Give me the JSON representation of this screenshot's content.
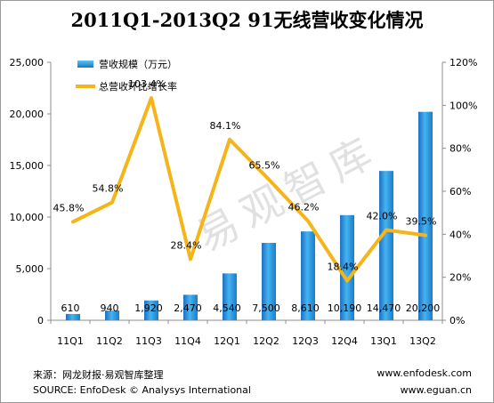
{
  "title": "2011Q1-2013Q2  91无线营收变化情况",
  "source_cn": "来源：网龙财报·易观智库整理",
  "source_en": "SOURCE: EnfoDesk © Analysys International",
  "url1": "www.enfodesk.com",
  "url2": "www.eguan.cn",
  "watermark": "易观智库",
  "chart_data": {
    "type": "bar",
    "categories": [
      "11Q1",
      "11Q2",
      "11Q3",
      "11Q4",
      "12Q1",
      "12Q2",
      "12Q3",
      "12Q4",
      "13Q1",
      "13Q2"
    ],
    "series": [
      {
        "name": "营收规模（万元）",
        "type": "bar",
        "axis": "left",
        "values": [
          610,
          940,
          1920,
          2470,
          4540,
          7500,
          8610,
          10190,
          14470,
          20200
        ],
        "labels": [
          "610",
          "940",
          "1,920",
          "2,470",
          "4,540",
          "7,500",
          "8,610",
          "10,190",
          "14,470",
          "20,200"
        ],
        "color": "#2f95dc"
      },
      {
        "name": "总营收环比增长率",
        "type": "line",
        "axis": "right",
        "values": [
          45.8,
          54.8,
          103.4,
          28.4,
          84.1,
          65.5,
          46.2,
          18.4,
          42.0,
          39.5
        ],
        "labels": [
          "45.8%",
          "54.8%",
          "103.4%",
          "28.4%",
          "84.1%",
          "65.5%",
          "46.2%",
          "18.4%",
          "42.0%",
          "39.5%"
        ],
        "color": "#f5b41a"
      }
    ],
    "y_left": {
      "min": 0,
      "max": 25000,
      "ticks": [
        "0",
        "5,000",
        "10,000",
        "15,000",
        "20,000",
        "25,000"
      ]
    },
    "y_right": {
      "min": 0,
      "max": 120,
      "ticks": [
        "0%",
        "20%",
        "40%",
        "60%",
        "80%",
        "100%",
        "120%"
      ]
    },
    "legend_position": "top-left",
    "grid": false
  }
}
